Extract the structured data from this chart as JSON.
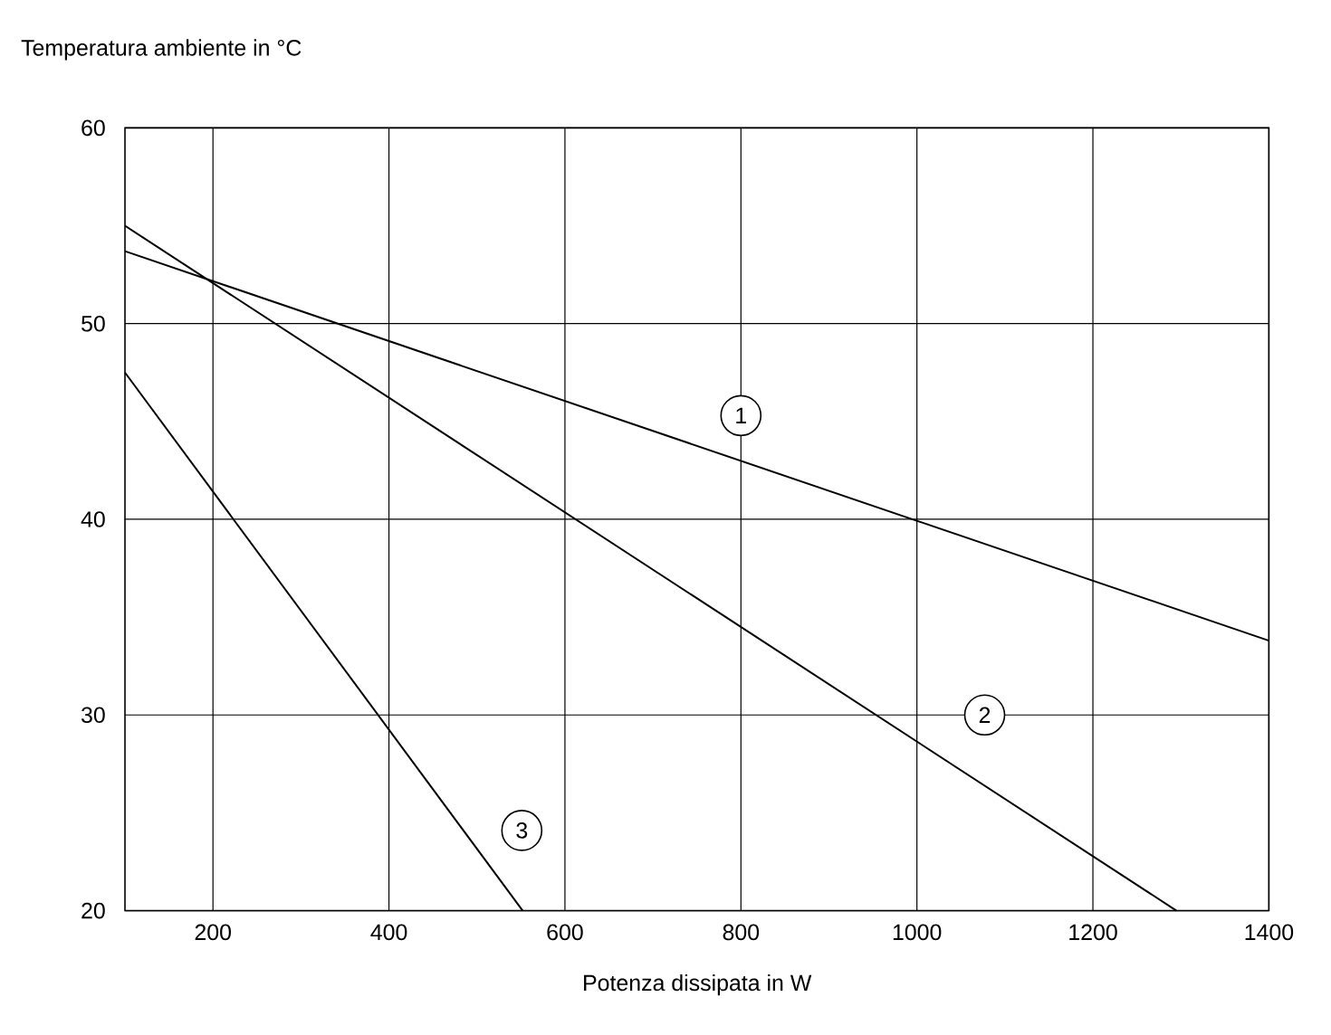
{
  "chart_data": {
    "type": "line",
    "xlabel": "Potenza dissipata in W",
    "ylabel": "Temperatura ambiente in °C",
    "series": [
      {
        "color": "#000000",
        "x": [
          100,
          1400
        ],
        "values": [
          53.7,
          33.8
        ]
      },
      {
        "color": "#000000",
        "x": [
          100,
          1295
        ],
        "values": [
          55,
          20
        ]
      },
      {
        "color": "#000000",
        "x": [
          100,
          552
        ],
        "values": [
          47.5,
          20
        ]
      }
    ],
    "annotations": [
      {
        "text": "1",
        "x": 800,
        "y": 45.3
      },
      {
        "text": "2",
        "x": 1077,
        "y": 30
      },
      {
        "text": "3",
        "x": 551,
        "y": 24.1
      }
    ],
    "xlim": [
      100,
      1400
    ],
    "ylim": [
      20,
      60
    ],
    "xticks": [
      200,
      400,
      600,
      800,
      1000,
      1200,
      1400
    ],
    "yticks": [
      20,
      30,
      40,
      50,
      60
    ],
    "grid": true,
    "marker": "none",
    "line_style": "solid"
  }
}
